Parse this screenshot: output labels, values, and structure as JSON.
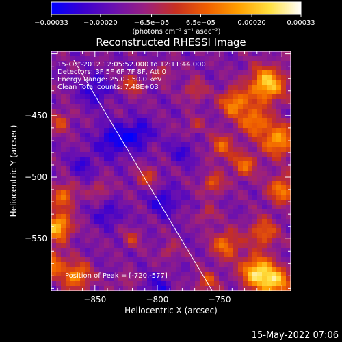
{
  "footer_timestamp": "15-May-2022 07:06",
  "chart_data": {
    "type": "heatmap",
    "title": "Reconstructed RHESSI Image",
    "xlabel": "Heliocentric X (arcsec)",
    "ylabel": "Heliocentric Y (arcsec)",
    "xlim": [
      -885,
      -693
    ],
    "ylim": [
      -592,
      -398
    ],
    "x_ticks": [
      -850,
      -800,
      -750
    ],
    "x_tick_labels": [
      "−850",
      "−800",
      "−750"
    ],
    "y_ticks": [
      -450,
      -500,
      -550
    ],
    "y_tick_labels": [
      "−450",
      "−500",
      "−550"
    ],
    "annotations": [
      "15-Oct-2012 12:05:52.000 to 12:11:44.000",
      "Detectors: 3F 5F 6F 7F 8F, Att 0",
      "Energy Range: 25.0 - 50.0 keV",
      "Clean   Total counts: 7.48E+03"
    ],
    "peak_label": "Position of Peak = [-720,-577]",
    "peak_position": [
      -720,
      -577
    ],
    "limb_line": {
      "from": [
        -867,
        -405
      ],
      "to": [
        -756,
        -592
      ]
    },
    "colorbar": {
      "range": [
        -0.00033,
        0.00033
      ],
      "ticks": [
        -0.00033,
        -0.0002,
        -6.5e-05,
        6.5e-05,
        0.0002,
        0.00033
      ],
      "tick_labels": [
        "−0.00033",
        "−0.00020",
        "−6.5e−05",
        "6.5e−05",
        "0.00020",
        "0.00033"
      ],
      "unit_label": "(photons cm⁻² s⁻¹ asec⁻²)",
      "colors": [
        "#0000ff",
        "#3a00d0",
        "#6a10b0",
        "#9a2080",
        "#c83020",
        "#f06000",
        "#ffa000",
        "#ffe040",
        "#ffffff"
      ]
    },
    "hotspots": [
      {
        "x": -712,
        "y": -425,
        "amp": 1.0,
        "r": 10
      },
      {
        "x": -738,
        "y": -440,
        "amp": 0.75,
        "r": 8
      },
      {
        "x": -703,
        "y": -470,
        "amp": 0.85,
        "r": 9
      },
      {
        "x": -722,
        "y": -455,
        "amp": 0.7,
        "r": 8
      },
      {
        "x": -748,
        "y": -475,
        "amp": 0.55,
        "r": 7
      },
      {
        "x": -730,
        "y": -490,
        "amp": 0.6,
        "r": 7
      },
      {
        "x": -755,
        "y": -505,
        "amp": 0.55,
        "r": 6
      },
      {
        "x": -700,
        "y": -510,
        "amp": 0.7,
        "r": 8
      },
      {
        "x": -715,
        "y": -545,
        "amp": 0.6,
        "r": 8
      },
      {
        "x": -745,
        "y": -555,
        "amp": 0.65,
        "r": 8
      },
      {
        "x": -720,
        "y": -577,
        "amp": 1.05,
        "r": 9
      },
      {
        "x": -705,
        "y": -585,
        "amp": 0.9,
        "r": 8
      },
      {
        "x": -760,
        "y": -585,
        "amp": 0.5,
        "r": 6
      },
      {
        "x": -880,
        "y": -540,
        "amp": 0.95,
        "r": 8
      },
      {
        "x": -875,
        "y": -515,
        "amp": 0.6,
        "r": 7
      },
      {
        "x": -865,
        "y": -580,
        "amp": 0.75,
        "r": 8
      },
      {
        "x": -885,
        "y": -570,
        "amp": 0.7,
        "r": 7
      },
      {
        "x": -878,
        "y": -455,
        "amp": 0.45,
        "r": 6
      },
      {
        "x": -820,
        "y": -425,
        "amp": 0.45,
        "r": 6
      },
      {
        "x": -795,
        "y": -415,
        "amp": 0.35,
        "r": 5
      },
      {
        "x": -770,
        "y": -430,
        "amp": 0.4,
        "r": 6
      },
      {
        "x": -808,
        "y": -500,
        "amp": 0.4,
        "r": 6
      },
      {
        "x": -820,
        "y": -550,
        "amp": 0.35,
        "r": 5
      },
      {
        "x": -846,
        "y": -510,
        "amp": 0.35,
        "r": 5
      },
      {
        "x": -790,
        "y": -560,
        "amp": 0.3,
        "r": 5
      },
      {
        "x": -760,
        "y": -530,
        "amp": 0.35,
        "r": 5
      },
      {
        "x": -770,
        "y": -458,
        "amp": 0.3,
        "r": 5
      },
      {
        "x": -825,
        "y": -585,
        "amp": 0.25,
        "r": 5
      },
      {
        "x": -850,
        "y": -430,
        "amp": -0.4,
        "r": 8
      },
      {
        "x": -835,
        "y": -470,
        "amp": -0.5,
        "r": 9
      },
      {
        "x": -815,
        "y": -465,
        "amp": -0.45,
        "r": 8
      },
      {
        "x": -795,
        "y": -520,
        "amp": -0.4,
        "r": 8
      },
      {
        "x": -840,
        "y": -530,
        "amp": -0.35,
        "r": 7
      },
      {
        "x": -800,
        "y": -590,
        "amp": -0.35,
        "r": 7
      },
      {
        "x": -860,
        "y": -490,
        "amp": -0.3,
        "r": 7
      },
      {
        "x": -780,
        "y": -480,
        "amp": -0.3,
        "r": 7
      }
    ]
  }
}
